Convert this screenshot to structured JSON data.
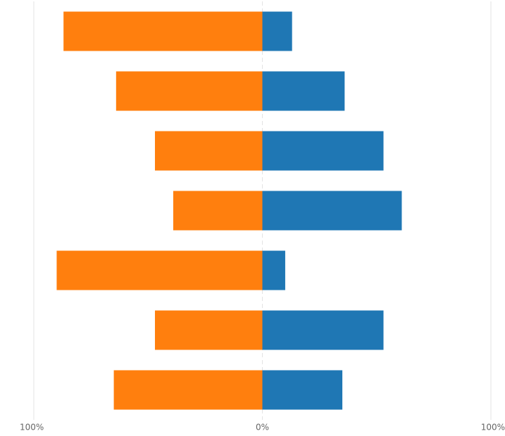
{
  "chart_data": {
    "type": "bar",
    "horizontal": true,
    "categories": [
      null,
      null,
      null,
      null,
      null,
      null,
      null
    ],
    "series": [
      {
        "color": "#ff7f0e",
        "values": [
          -87,
          -64,
          -47,
          -39,
          -90,
          -47,
          -65
        ]
      },
      {
        "color": "#1f77b4",
        "values": [
          13,
          36,
          53,
          61,
          10,
          53,
          35
        ]
      }
    ],
    "xlim": [
      -100,
      100
    ],
    "xticks": [
      {
        "value": -100,
        "label": "100%"
      },
      {
        "value": 0,
        "label": "0%"
      },
      {
        "value": 100,
        "label": "100%"
      }
    ],
    "grid": true
  }
}
